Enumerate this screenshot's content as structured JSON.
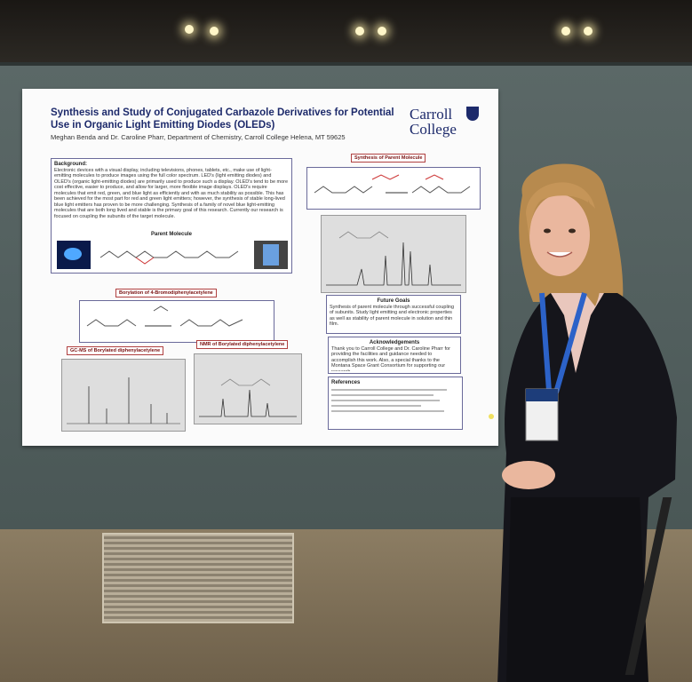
{
  "poster": {
    "title": "Synthesis and Study of Conjugated Carbazole Derivatives for Potential Use in Organic Light Emitting Diodes (OLEDs)",
    "authors": "Meghan Benda and Dr. Caroline Pharr, Department of Chemistry, Carroll College Helena, MT 59625",
    "logo": "Carroll College",
    "background_title": "Background:",
    "background_text": "Electronic devices with a visual display, including televisions, phones, tablets, etc., make use of light-emitting molecules to produce images using the full color spectrum. LED's (light emitting diodes) and OLED's (organic light-emitting diodes) are primarily used to produce such a display. OLED's tend to be more cost effective, easier to produce, and allow for larger, more flexible image displays. OLED's require molecules that emit red, green, and blue light as efficiently and with as much stability as possible. This has been achieved for the most part for red and green light emitters; however, the synthesis of stable long-lived blue light emitters has proven to be more challenging. Synthesis of a family of novel blue light-emitting molecules that are both long lived and stable is the primary goal of this research. Currently our research is focused on coupling the subunits of the target molecule.",
    "parent_molecule": "Parent Molecule",
    "synthesis_label": "Synthesis of Parent Molecule",
    "borylation_label": "Borylation of 4-Bromodiphenylacetylene",
    "gcms_label": "GC-MS of Borylated diphenylacetylene",
    "nmr_label": "NMR of Borylated diphenylacetylene",
    "future_title": "Future Goals",
    "future_text": "Synthesis of parent molecule through successful coupling of subunits. Study light emitting and electronic properties as well as stability of parent molecule in solution and thin film.",
    "ack_title": "Acknowledgements",
    "ack_text": "Thank you to Carroll College and Dr. Caroline Pharr for providing the facilities and guidance needed to accomplish this work. Also, a special thanks to the Montana Space Grant Consortium for supporting our research.",
    "refs_title": "References"
  }
}
